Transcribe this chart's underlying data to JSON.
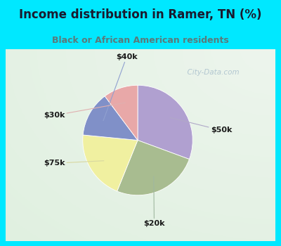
{
  "title": "Income distribution in Ramer, TN (%)",
  "subtitle": "Black or African American residents",
  "title_color": "#1a1a2e",
  "subtitle_color": "#5a7a7a",
  "outer_bg": "#00e8ff",
  "inner_bg": "#e8f5ee",
  "slices": [
    {
      "label": "$50k",
      "value": 30,
      "color": "#b0a0d0"
    },
    {
      "label": "$20k",
      "value": 25,
      "color": "#a8bc90"
    },
    {
      "label": "$75k",
      "value": 20,
      "color": "#f0f0a0"
    },
    {
      "label": "$40k",
      "value": 13,
      "color": "#8090c8"
    },
    {
      "label": "$30k",
      "value": 10,
      "color": "#e8a8a8"
    }
  ],
  "watermark": "City-Data.com",
  "watermark_color": "#a0b8c8",
  "label_color": "#1a1a1a",
  "line_colors": {
    "$50k": "#b0a8c8",
    "$20k": "#a0b8a0",
    "$75k": "#d8d8a0",
    "$40k": "#90a0d0",
    "$30k": "#e0b0b0"
  }
}
